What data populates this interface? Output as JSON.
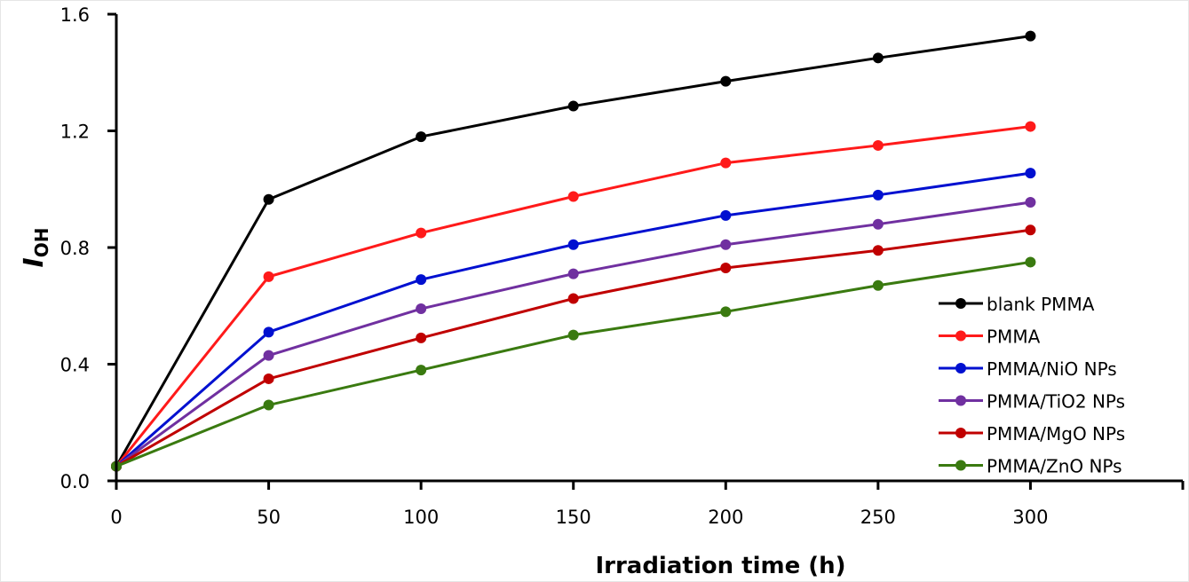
{
  "chart_data": {
    "type": "line",
    "title": "",
    "xlabel": "Irradiation time (h)",
    "ylabel": {
      "main": "I",
      "subscript": "OH"
    },
    "x": [
      0,
      50,
      100,
      150,
      200,
      250,
      300
    ],
    "xlim": [
      0,
      350
    ],
    "ylim": [
      0,
      1.6
    ],
    "xticks": [
      0,
      50,
      100,
      150,
      200,
      250,
      300,
      350
    ],
    "xtick_labels": [
      "0",
      "50",
      "100",
      "150",
      "200",
      "250",
      "300",
      ""
    ],
    "yticks": [
      0,
      0.4,
      0.8,
      1.2,
      1.6
    ],
    "ytick_labels": [
      "0.0",
      "0.4",
      "0.8",
      "1.2",
      "1.6"
    ],
    "grid": false,
    "legend_position": "bottom-right",
    "series": [
      {
        "name": "blank PMMA",
        "color": "#000000",
        "values": [
          0.05,
          0.965,
          1.18,
          1.285,
          1.37,
          1.45,
          1.525
        ]
      },
      {
        "name": "PMMA",
        "color": "#ff1a1a",
        "values": [
          0.05,
          0.7,
          0.85,
          0.975,
          1.09,
          1.15,
          1.215
        ]
      },
      {
        "name": "PMMA/NiO NPs",
        "color": "#0010d0",
        "values": [
          0.05,
          0.51,
          0.69,
          0.81,
          0.91,
          0.98,
          1.055
        ]
      },
      {
        "name": "PMMA/TiO2 NPs",
        "color": "#7030a0",
        "values": [
          0.05,
          0.43,
          0.59,
          0.71,
          0.81,
          0.88,
          0.955
        ]
      },
      {
        "name": "PMMA/MgO NPs",
        "color": "#c00000",
        "values": [
          0.05,
          0.35,
          0.49,
          0.625,
          0.73,
          0.79,
          0.86
        ]
      },
      {
        "name": "PMMA/ZnO NPs",
        "color": "#3a7a10",
        "values": [
          0.05,
          0.26,
          0.38,
          0.5,
          0.58,
          0.67,
          0.75
        ]
      }
    ]
  }
}
